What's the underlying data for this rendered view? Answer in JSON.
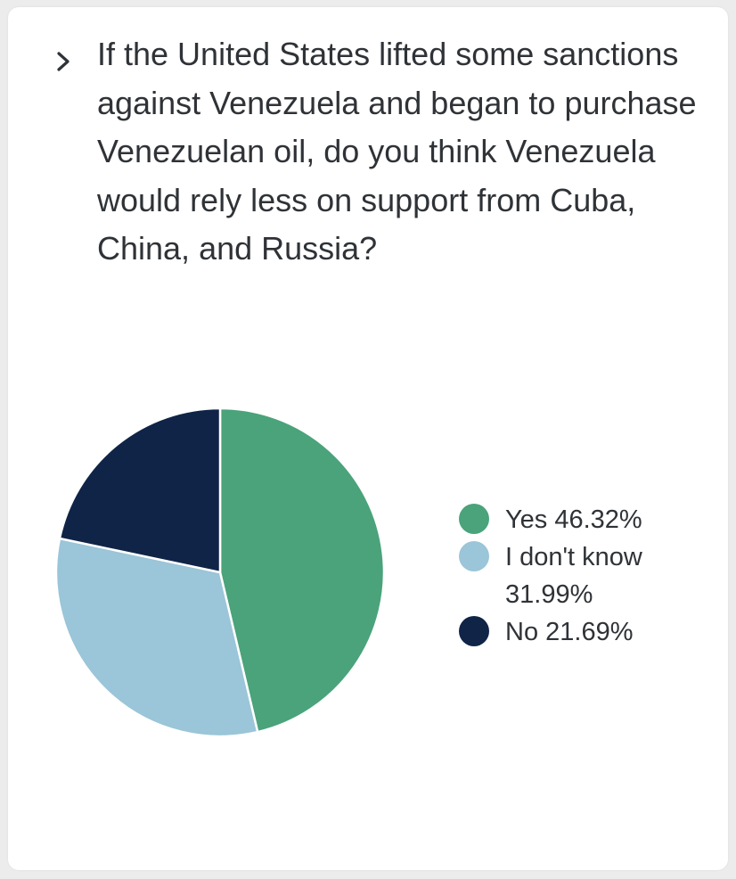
{
  "question": "If the United States lifted some sanctions against Venezuela and began to purchase Venezuelan oil, do you think Venezuela would rely less on support from Cuba, China, and Russia?",
  "icons": {
    "expand": "chevron-right-icon"
  },
  "chart_data": {
    "type": "pie",
    "title": "",
    "start_angle_deg": 0,
    "direction": "clockwise",
    "legend_position": "right",
    "slices": [
      {
        "label": "Yes 46.32%",
        "category": "Yes",
        "value": 46.32,
        "color": "#4aa37a"
      },
      {
        "label": "I don't know 31.99%",
        "category": "I don't know",
        "value": 31.99,
        "color": "#9bc5d8"
      },
      {
        "label": "No 21.69%",
        "category": "No",
        "value": 21.69,
        "color": "#0f2447"
      }
    ]
  }
}
